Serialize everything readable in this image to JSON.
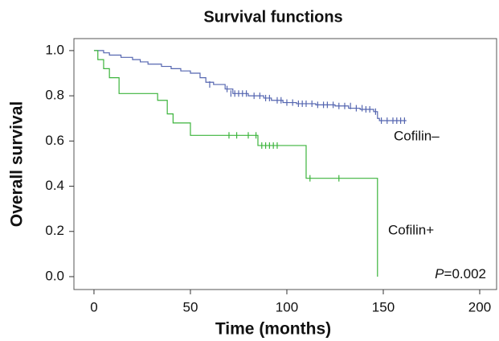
{
  "chart_data": {
    "type": "survival",
    "title": "Survival functions",
    "x_label": "Time (months)",
    "y_label": "Overall survival",
    "xlim": [
      -10.4,
      208.75
    ],
    "ylim": [
      -0.057,
      1.053
    ],
    "xticks": [
      0,
      50,
      100,
      150,
      200
    ],
    "yticks": [
      {
        "value": 0,
        "label": "0.0"
      },
      0.2,
      0.4,
      0.6,
      0.8,
      {
        "value": 1,
        "label": "1.0"
      }
    ],
    "annotation_italic": "P",
    "annotation_text": "=0.002",
    "series": [
      {
        "name": "Cofilin–",
        "color": "#5566b0",
        "x": [
          0,
          5,
          8,
          14,
          20,
          24,
          28,
          35,
          40,
          45,
          50,
          55,
          58,
          62,
          68,
          72,
          80,
          88,
          92,
          98,
          105,
          115,
          125,
          132,
          138,
          145,
          147,
          148,
          162
        ],
        "values": [
          1.0,
          0.99,
          0.98,
          0.97,
          0.96,
          0.95,
          0.94,
          0.93,
          0.92,
          0.91,
          0.9,
          0.88,
          0.86,
          0.85,
          0.83,
          0.81,
          0.8,
          0.79,
          0.78,
          0.77,
          0.765,
          0.76,
          0.755,
          0.745,
          0.74,
          0.73,
          0.7,
          0.69,
          0.69
        ],
        "censored_x": [
          60,
          69,
          71,
          73,
          75,
          77,
          79,
          83,
          86,
          89,
          91,
          95,
          97,
          100,
          103,
          106,
          108,
          110,
          113,
          116,
          119,
          121,
          124,
          127,
          130,
          133,
          136,
          139,
          141,
          143,
          146,
          149,
          152,
          155,
          157,
          159,
          161
        ],
        "censored_values": [
          0.85,
          0.83,
          0.81,
          0.81,
          0.81,
          0.81,
          0.81,
          0.8,
          0.8,
          0.79,
          0.79,
          0.78,
          0.78,
          0.77,
          0.77,
          0.765,
          0.765,
          0.765,
          0.765,
          0.76,
          0.76,
          0.76,
          0.76,
          0.755,
          0.755,
          0.755,
          0.745,
          0.745,
          0.74,
          0.74,
          0.73,
          0.69,
          0.69,
          0.69,
          0.69,
          0.69,
          0.69
        ]
      },
      {
        "name": "Cofilin+",
        "color": "#3cb43c",
        "x": [
          0,
          2,
          5,
          8,
          13,
          33,
          38,
          41,
          50,
          85,
          110,
          147
        ],
        "values": [
          1.0,
          0.96,
          0.92,
          0.88,
          0.81,
          0.78,
          0.72,
          0.68,
          0.625,
          0.58,
          0.435,
          0.0
        ],
        "censored_x": [
          70,
          74,
          80,
          84,
          87,
          89,
          91,
          93,
          95,
          112,
          127
        ],
        "censored_values": [
          0.625,
          0.625,
          0.625,
          0.625,
          0.58,
          0.58,
          0.58,
          0.58,
          0.58,
          0.435,
          0.435
        ]
      }
    ]
  }
}
